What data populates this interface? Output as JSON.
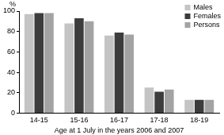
{
  "chart_data": {
    "type": "bar",
    "ylabel": "%",
    "xlabel": "Age at 1 July in the years 2006 and 2007",
    "categories": [
      "14-15",
      "15-16",
      "16-17",
      "17-18",
      "18-19"
    ],
    "series": [
      {
        "name": "Males",
        "color": "#c4c4c4",
        "values": [
          97,
          88,
          76,
          25,
          13
        ]
      },
      {
        "name": "Females",
        "color": "#3c3c3c",
        "values": [
          98,
          93,
          79,
          21,
          13
        ]
      },
      {
        "name": "Persons",
        "color": "#a3a3a3",
        "values": [
          98,
          90,
          77,
          23,
          13
        ]
      }
    ],
    "ylim": [
      0,
      100
    ],
    "yticks": [
      0,
      20,
      40,
      60,
      80,
      100
    ],
    "grid": false,
    "legend": "upper right"
  }
}
